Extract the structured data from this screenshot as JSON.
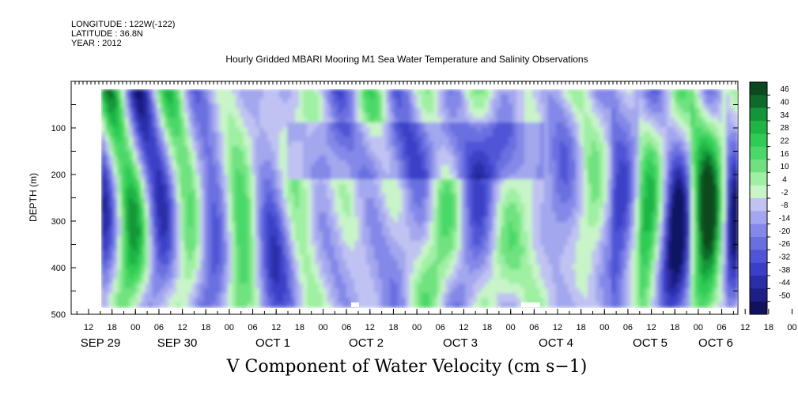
{
  "header": {
    "longitude": "LONGITUDE : 122W(-122)",
    "latitude": "LATITUDE : 36.8N",
    "year": "YEAR : 2012"
  },
  "chart_data": {
    "type": "heatmap",
    "title": "Hourly Gridded MBARI Mooring M1 Sea Water Temperature and Salinity Observations",
    "xlabel": "V Component of Water Velocity (cm s−1)",
    "ylabel": "DEPTH (m)",
    "ylim": [
      500,
      0
    ],
    "y_ticks": [
      100,
      200,
      300,
      400,
      500
    ],
    "x_hour_labels": [
      "12",
      "18",
      "00",
      "06",
      "12",
      "18",
      "00",
      "06",
      "12",
      "18",
      "00",
      "06",
      "12",
      "18",
      "00",
      "06",
      "12",
      "18",
      "00",
      "06",
      "12",
      "18",
      "00",
      "06",
      "12",
      "18",
      "00",
      "06",
      "12",
      "18",
      "00",
      "06"
    ],
    "x_day_labels": [
      "SEP 29",
      "SEP 30",
      "OCT 1",
      "OCT 2",
      "OCT 3",
      "OCT 4",
      "OCT 5",
      "OCT 6"
    ],
    "colorbar_levels": [
      "46",
      "40",
      "34",
      "28",
      "22",
      "16",
      "10",
      "4",
      "-2",
      "-8",
      "-14",
      "-20",
      "-26",
      "-32",
      "-38",
      "-44",
      "-50"
    ],
    "colorbar_colors": [
      "#0b4a1e",
      "#0e6a2a",
      "#129637",
      "#1fb545",
      "#2ecc55",
      "#4ad968",
      "#6fe27f",
      "#9ff0a3",
      "#c8f4c8",
      "#c0c2f2",
      "#a3a7ee",
      "#8488e8",
      "#6a6fe0",
      "#4f55d6",
      "#3a40c6",
      "#2a2fa8",
      "#1c1f86",
      "#10125e"
    ]
  }
}
